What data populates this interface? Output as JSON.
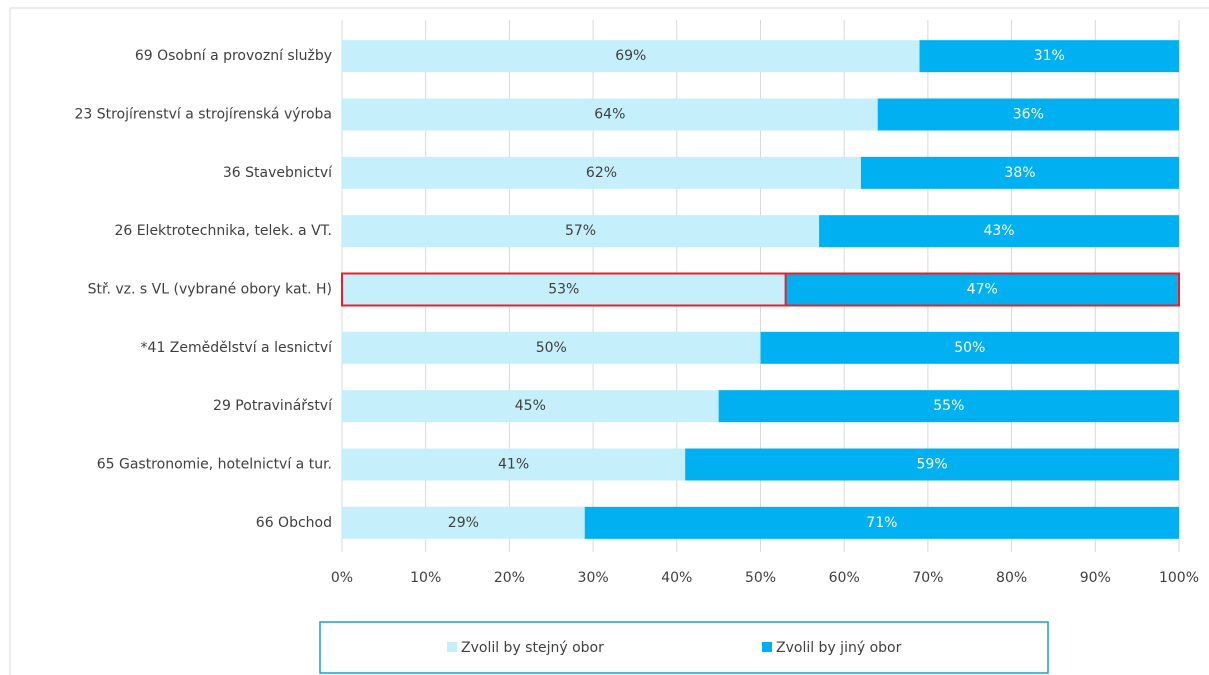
{
  "chart_data": {
    "type": "stacked-bar-horizontal",
    "categories": [
      "69 Osobní a provozní služby",
      "23 Strojírenství a strojírenská výroba",
      "36 Stavebnictví",
      "26 Elektrotechnika, telek. a VT.",
      "Stř. vz. s VL (vybrané obory kat. H)",
      "*41 Zemědělství a lesnictví",
      "29 Potravinářství",
      "65 Gastronomie, hotelnictví a tur.",
      "66 Obchod"
    ],
    "series": [
      {
        "name": "Zvolil by stejný obor",
        "color": "#c6effc",
        "label_color": "#404040",
        "values": [
          69,
          64,
          62,
          57,
          53,
          50,
          45,
          41,
          29
        ],
        "value_labels": [
          "69%",
          "64%",
          "62%",
          "57%",
          "53%",
          "50%",
          "45%",
          "41%",
          "29%"
        ]
      },
      {
        "name": "Zvolil by jiný obor",
        "color": "#00b0f0",
        "label_color": "#ffffff",
        "values": [
          31,
          36,
          38,
          43,
          47,
          50,
          55,
          59,
          71
        ],
        "value_labels": [
          "31%",
          "36%",
          "38%",
          "43%",
          "47%",
          "50%",
          "55%",
          "59%",
          "71%"
        ]
      }
    ],
    "xlim": [
      0,
      100
    ],
    "xticks": [
      {
        "value": 0,
        "label": "0%"
      },
      {
        "value": 10,
        "label": "10%"
      },
      {
        "value": 20,
        "label": "20%"
      },
      {
        "value": 30,
        "label": "30%"
      },
      {
        "value": 40,
        "label": "40%"
      },
      {
        "value": 50,
        "label": "50%"
      },
      {
        "value": 60,
        "label": "60%"
      },
      {
        "value": 70,
        "label": "70%"
      },
      {
        "value": 80,
        "label": "80%"
      },
      {
        "value": 90,
        "label": "90%"
      },
      {
        "value": 100,
        "label": "100%"
      }
    ],
    "grid": true,
    "legend": "bottom",
    "highlight": {
      "category": 4,
      "color": "#e8202a"
    }
  }
}
